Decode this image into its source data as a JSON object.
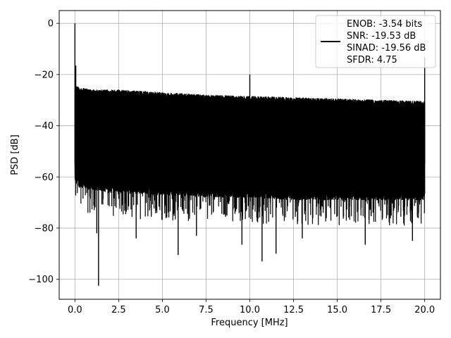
{
  "chart_data": {
    "type": "line",
    "title": "",
    "xlabel": "Frequency [MHz]",
    "ylabel": "PSD [dB]",
    "xlim": [
      -0.9,
      20.9
    ],
    "ylim": [
      -107.8,
      5.0
    ],
    "grid": true,
    "legend_position": "top-right",
    "xticks": [
      0.0,
      2.5,
      5.0,
      7.5,
      10.0,
      12.5,
      15.0,
      17.5,
      20.0
    ],
    "xtick_labels": [
      "0.0",
      "2.5",
      "5.0",
      "7.5",
      "10.0",
      "12.5",
      "15.0",
      "17.5",
      "20.0"
    ],
    "yticks": [
      0,
      -20,
      -40,
      -60,
      -80,
      -100
    ],
    "ytick_labels": [
      "0",
      "−20",
      "−40",
      "−60",
      "−80",
      "−100"
    ],
    "series": [
      {
        "color": "#000000",
        "band": {
          "x": [
            0.0,
            0.2,
            1.0,
            2.5,
            5.0,
            7.5,
            10.0,
            12.5,
            15.0,
            17.5,
            19.9
          ],
          "upper": [
            -24,
            -25,
            -26,
            -26,
            -27,
            -28,
            -28.5,
            -29,
            -29.5,
            -30,
            -30.5
          ],
          "lower": [
            -60,
            -62,
            -63,
            -64,
            -65,
            -66,
            -66,
            -67,
            -67,
            -67,
            -67
          ]
        },
        "peaks": [
          {
            "x": 0.0,
            "y": 0.0
          },
          {
            "x": 0.05,
            "y": -16.5
          },
          {
            "x": 10.0,
            "y": -20.0
          },
          {
            "x": 20.0,
            "y": -13.5
          }
        ],
        "dips": [
          {
            "x": 1.35,
            "y": -102.5
          },
          {
            "x": 1.25,
            "y": -82.0
          },
          {
            "x": 3.5,
            "y": -84.0
          },
          {
            "x": 5.9,
            "y": -90.5
          },
          {
            "x": 6.95,
            "y": -83.0
          },
          {
            "x": 9.55,
            "y": -86.5
          },
          {
            "x": 10.7,
            "y": -93.0
          },
          {
            "x": 11.5,
            "y": -90.0
          },
          {
            "x": 13.0,
            "y": -84.0
          },
          {
            "x": 16.6,
            "y": -86.5
          },
          {
            "x": 19.3,
            "y": -85.0
          }
        ]
      }
    ],
    "legend": {
      "lines": [
        "ENOB: -3.54 bits",
        "SNR: -19.53 dB",
        "SINAD: -19.56 dB",
        "SFDR: 4.75"
      ]
    }
  }
}
